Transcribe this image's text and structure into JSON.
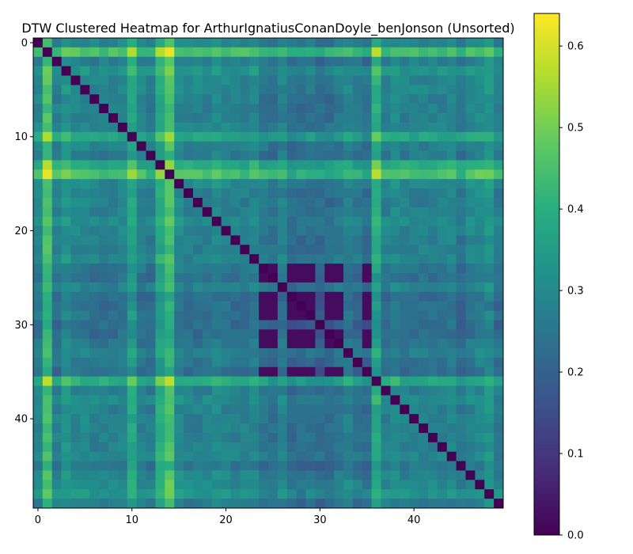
{
  "chart_data": {
    "type": "heatmap",
    "title": "DTW Clustered Heatmap for ArthurIgnatiusConanDoyle_benJonson (Unsorted)",
    "xlabel": "",
    "ylabel": "",
    "n": 50,
    "x_ticks": [
      0,
      10,
      20,
      30,
      40
    ],
    "y_ticks": [
      0,
      10,
      20,
      30,
      40
    ],
    "colormap": "viridis",
    "vmin": 0.0,
    "vmax": 0.64,
    "colorbar_ticks": [
      0.0,
      0.1,
      0.2,
      0.3,
      0.4,
      0.5,
      0.6
    ],
    "colorbar_tick_labels": [
      "0.0",
      "0.1",
      "0.2",
      "0.3",
      "0.4",
      "0.5",
      "0.6"
    ],
    "row_levels": [
      0.24,
      0.5,
      0.22,
      0.3,
      0.25,
      0.25,
      0.22,
      0.22,
      0.22,
      0.24,
      0.38,
      0.22,
      0.2,
      0.4,
      0.5,
      0.26,
      0.22,
      0.22,
      0.22,
      0.26,
      0.24,
      0.22,
      0.22,
      0.24,
      0.18,
      0.16,
      0.22,
      0.14,
      0.14,
      0.16,
      0.14,
      0.14,
      0.18,
      0.22,
      0.18,
      0.14,
      0.4,
      0.22,
      0.26,
      0.22,
      0.22,
      0.22,
      0.22,
      0.22,
      0.24,
      0.18,
      0.24,
      0.26,
      0.3,
      0.2
    ],
    "block_group": [
      24,
      25,
      27,
      28,
      29,
      31,
      32,
      35
    ],
    "block_value": 0.02,
    "description_of_values": "Symmetric DTW distance matrix; zero diagonal; bright (high) cross at indices 1, 10, 14, 36, 48; very low block among indices 24-35"
  }
}
